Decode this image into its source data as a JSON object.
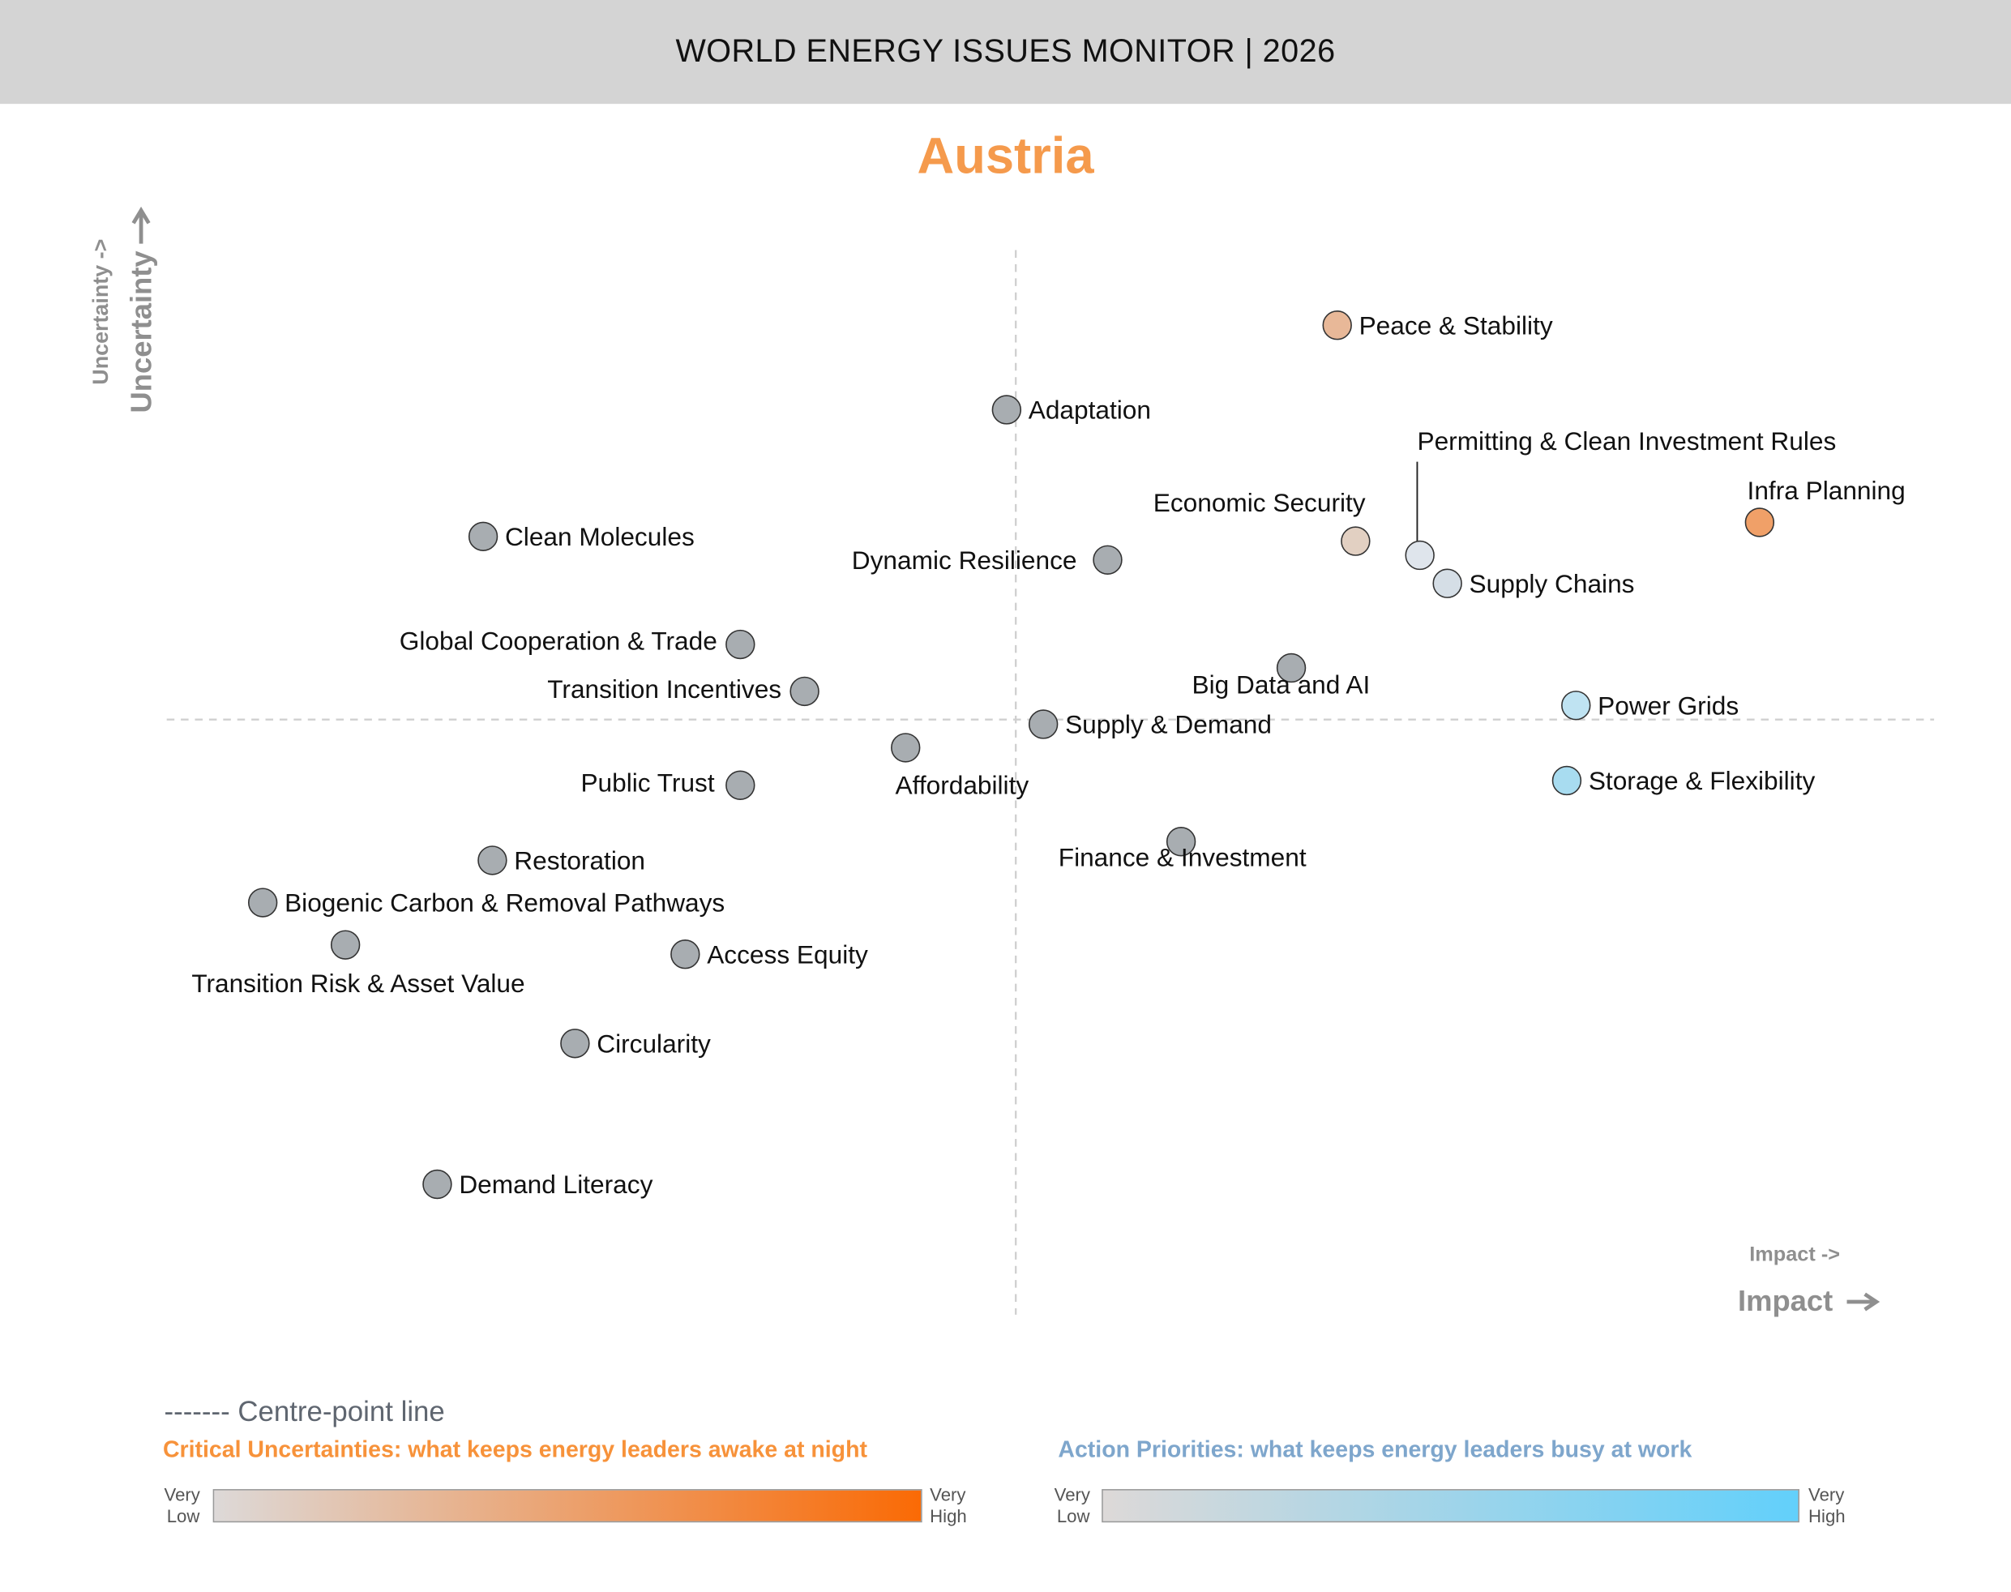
{
  "header": {
    "title": "WORLD ENERGY ISSUES MONITOR | 2026"
  },
  "country": "Austria",
  "chart_data": {
    "type": "scatter",
    "title": "Austria",
    "xlabel": "Impact",
    "ylabel": "Uncertainty",
    "xlabel_ghost": "Impact ->",
    "ylabel_ghost": "Uncertainty ->",
    "xlim": [
      -0.92,
      1.0
    ],
    "ylim": [
      -1.27,
      1.0
    ],
    "centre_lines": {
      "x": 0,
      "y": 0,
      "style": "dashed"
    },
    "grid": false,
    "points": [
      {
        "name": "Peace & Stability",
        "x": 0.35,
        "y": 0.84,
        "color": "#e8b898"
      },
      {
        "name": "Adaptation",
        "x": -0.01,
        "y": 0.66,
        "color": "#a8adb1"
      },
      {
        "name": "Economic Security",
        "x": 0.37,
        "y": 0.38,
        "color": "#e2d0c2"
      },
      {
        "name": "Permitting & Clean Investment Rules",
        "x": 0.44,
        "y": 0.35,
        "color": "#dfe5ec"
      },
      {
        "name": "Infra Planning",
        "x": 0.81,
        "y": 0.42,
        "color": "#f0a068"
      },
      {
        "name": "Supply Chains",
        "x": 0.47,
        "y": 0.29,
        "color": "#d5dee6"
      },
      {
        "name": "Clean Molecules",
        "x": -0.58,
        "y": 0.39,
        "color": "#a8adb1"
      },
      {
        "name": "Dynamic Resilience",
        "x": 0.1,
        "y": 0.34,
        "color": "#a8adb1"
      },
      {
        "name": "Global Cooperation & Trade",
        "x": -0.3,
        "y": 0.16,
        "color": "#a8adb1"
      },
      {
        "name": "Transition Incentives",
        "x": -0.23,
        "y": 0.06,
        "color": "#a8adb1"
      },
      {
        "name": "Big Data and AI",
        "x": 0.3,
        "y": 0.11,
        "color": "#a8adb1"
      },
      {
        "name": "Power Grids",
        "x": 0.61,
        "y": 0.03,
        "color": "#bfe3f2"
      },
      {
        "name": "Supply & Demand",
        "x": 0.03,
        "y": -0.01,
        "color": "#a8adb1"
      },
      {
        "name": "Affordability",
        "x": -0.12,
        "y": -0.06,
        "color": "#a8adb1"
      },
      {
        "name": "Public Trust",
        "x": -0.3,
        "y": -0.14,
        "color": "#a8adb1"
      },
      {
        "name": "Storage & Flexibility",
        "x": 0.6,
        "y": -0.13,
        "color": "#a8dcf0"
      },
      {
        "name": "Finance & Investment",
        "x": 0.18,
        "y": -0.26,
        "color": "#a8adb1"
      },
      {
        "name": "Restoration",
        "x": -0.57,
        "y": -0.3,
        "color": "#a8adb1"
      },
      {
        "name": "Biogenic Carbon & Removal Pathways",
        "x": -0.82,
        "y": -0.39,
        "color": "#a8adb1"
      },
      {
        "name": "Transition Risk & Asset Value",
        "x": -0.73,
        "y": -0.48,
        "color": "#a8adb1"
      },
      {
        "name": "Access Equity",
        "x": -0.36,
        "y": -0.5,
        "color": "#a8adb1"
      },
      {
        "name": "Circularity",
        "x": -0.48,
        "y": -0.69,
        "color": "#a8adb1"
      },
      {
        "name": "Demand Literacy",
        "x": -0.63,
        "y": -0.99,
        "color": "#a8adb1"
      }
    ]
  },
  "legend": {
    "centre_line": "------- Centre-point line",
    "uncertainties": {
      "title": "Critical Uncertainties: what keeps energy leaders awake at night",
      "color": "#f7923a",
      "low_a": "Very",
      "low_b": "Low",
      "high_a": "Very",
      "high_b": "High",
      "gradient": [
        "#ddd9d8",
        "#fa6a05"
      ]
    },
    "priorities": {
      "title": "Action Priorities: what keeps energy leaders busy at work",
      "color": "#7ea6cc",
      "low_a": "Very",
      "low_b": "Low",
      "high_a": "Very",
      "high_b": "High",
      "gradient": [
        "#ddd9d8",
        "#62d0fb"
      ]
    }
  }
}
